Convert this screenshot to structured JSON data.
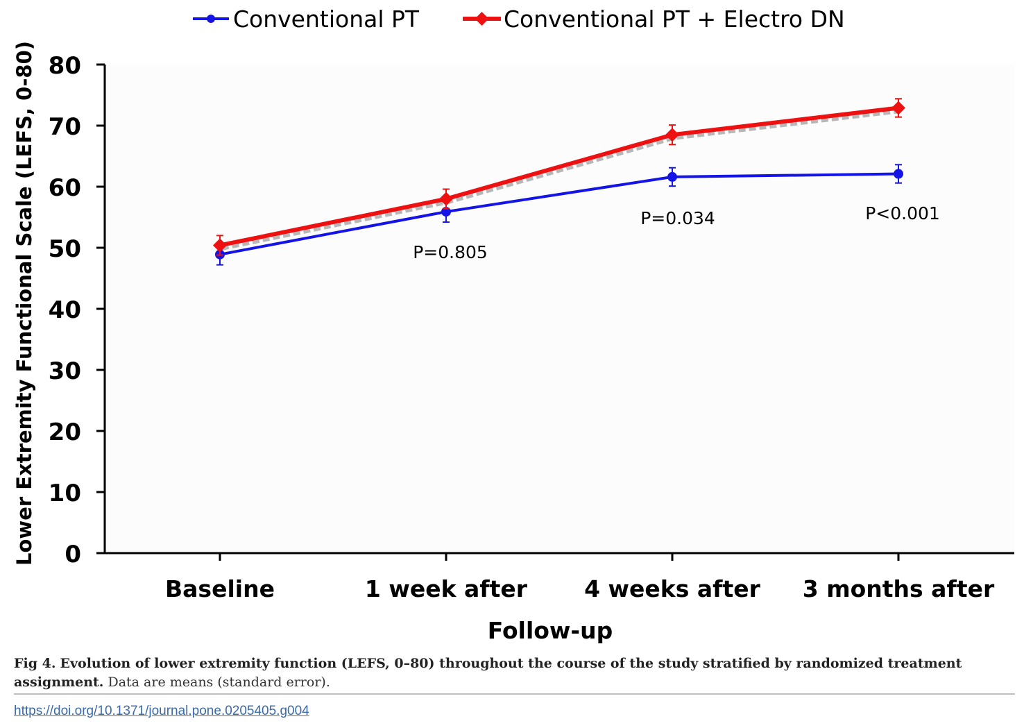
{
  "chart_data": {
    "type": "line",
    "categories": [
      "Baseline",
      "1 week after",
      "4 weeks after",
      "3 months after"
    ],
    "series": [
      {
        "name": "Conventional PT",
        "color": "#1414e6",
        "marker": "circle",
        "values": [
          48.9,
          55.9,
          61.6,
          62.1
        ],
        "error": [
          1.7,
          1.7,
          1.5,
          1.5
        ]
      },
      {
        "name": "Conventional PT + Electro DN",
        "color": "#ee1111",
        "marker": "diamond",
        "values": [
          50.4,
          58.0,
          68.5,
          72.9
        ],
        "error": [
          1.6,
          1.6,
          1.6,
          1.5
        ]
      }
    ],
    "annotations": [
      {
        "text": "P=0.805",
        "category_index": 1
      },
      {
        "text": "P=0.034",
        "category_index": 2
      },
      {
        "text": "P<0.001",
        "category_index": 3
      }
    ],
    "title": "",
    "xlabel": "Follow-up",
    "ylabel": "Lower Extremity Functional Scale (LEFS, 0-80)",
    "ylim": [
      0,
      80
    ],
    "yticks": [
      0,
      10,
      20,
      30,
      40,
      50,
      60,
      70,
      80
    ],
    "grid": false,
    "legend_position": "top"
  },
  "caption": {
    "label": "Fig 4.",
    "title": "Evolution of lower extremity function (LEFS, 0–80) throughout the course of the study stratified by randomized treatment assignment.",
    "note": "Data are means (standard error)."
  },
  "doi": "https://doi.org/10.1371/journal.pone.0205405.g004"
}
